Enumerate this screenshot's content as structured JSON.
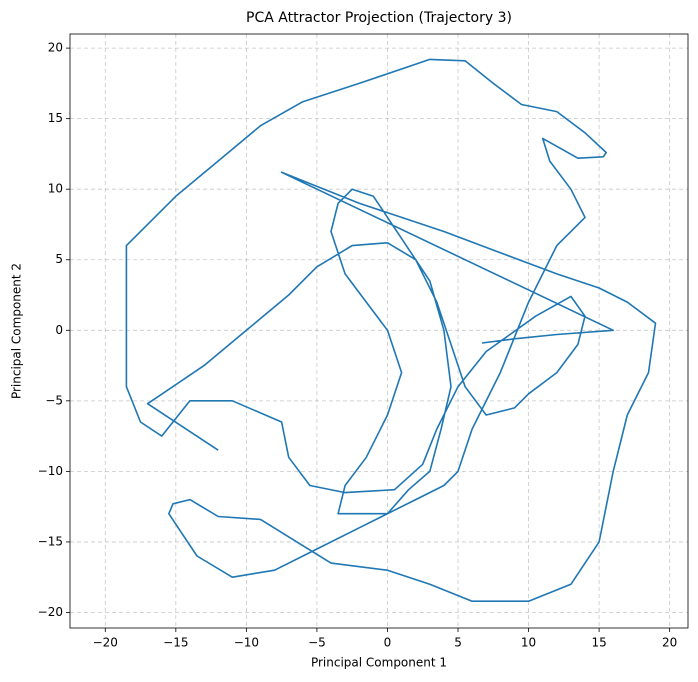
{
  "chart_data": {
    "type": "line",
    "title": "PCA Attractor Projection (Trajectory 3)",
    "x_label": "Principal Component 1",
    "y_label": "Principal Component 2",
    "xlim": [
      -22.5,
      21.3
    ],
    "ylim": [
      -21.1,
      21.0
    ],
    "xticks": [
      {
        "value": -20,
        "label": "−20"
      },
      {
        "value": -15,
        "label": "−15"
      },
      {
        "value": -10,
        "label": "−10"
      },
      {
        "value": -5,
        "label": "−5"
      },
      0,
      5,
      10,
      15,
      20
    ],
    "yticks": [
      {
        "value": -20,
        "label": "−20"
      },
      {
        "value": -15,
        "label": "−15"
      },
      {
        "value": -10,
        "label": "−10"
      },
      {
        "value": -5,
        "label": "−5"
      },
      0,
      5,
      10,
      15,
      20
    ],
    "grid": true,
    "series": [
      {
        "color": "#1f77b4",
        "x": [
          -12,
          -17,
          -13,
          -10,
          -7,
          -5,
          -2.5,
          0,
          2,
          3.5,
          4.5,
          5.5,
          7,
          9,
          10,
          12,
          13.5,
          14,
          13,
          10.5,
          7,
          5,
          3.5,
          2.5,
          0.5,
          -3,
          -5.5,
          -7,
          -7.5,
          -11,
          -14,
          -16,
          -17.5,
          -18.5,
          -18.5,
          -18.5,
          -18.5,
          -15,
          -12,
          -9,
          -6,
          -2,
          3,
          5.5,
          7.5,
          9.5,
          12,
          14,
          15.5,
          15.3,
          13.5,
          11,
          11.5,
          13,
          14,
          12,
          10,
          8,
          6,
          5,
          4,
          2,
          0,
          -3.5,
          -3,
          -1.5,
          0,
          1,
          0,
          -1.5,
          -3,
          -4,
          -3.5,
          -2.5,
          -1,
          0,
          1,
          3,
          4,
          4.5,
          3.8,
          3,
          1.5,
          0,
          -2,
          -5,
          -8,
          -11,
          -13.5,
          -15.5,
          -15.2,
          -14,
          -12,
          -9,
          -4,
          0,
          3,
          6,
          10,
          13,
          15,
          16,
          17,
          18.5,
          19,
          17,
          15,
          12,
          8,
          4,
          1,
          -2,
          -5,
          -7.5,
          16,
          12,
          9,
          6.7
        ],
        "y": [
          -8.5,
          -5.2,
          -2.5,
          0,
          2.5,
          4.5,
          6,
          6.2,
          5,
          2,
          -1,
          -4,
          -6,
          -5.5,
          -4.5,
          -3,
          -1,
          1,
          2.4,
          1,
          -1.5,
          -4,
          -7,
          -9.5,
          -11.3,
          -11.5,
          -11,
          -9,
          -6.5,
          -5,
          -5,
          -7.5,
          -6.5,
          -4,
          0,
          4,
          6,
          9.5,
          12,
          14.5,
          16.2,
          17.5,
          19.2,
          19.1,
          17.5,
          16,
          15.5,
          14,
          12.6,
          12.3,
          12.2,
          13.6,
          12,
          10,
          8,
          6,
          2,
          -3,
          -7,
          -10,
          -11,
          -12,
          -13,
          -13,
          -11,
          -9,
          -6,
          -3,
          0,
          2,
          4,
          7,
          9,
          10,
          9.5,
          8,
          6.5,
          3.5,
          0,
          -4,
          -7,
          -10,
          -11.3,
          -13,
          -14,
          -15.5,
          -17,
          -17.5,
          -16,
          -13,
          -12.3,
          -12,
          -13.2,
          -13.4,
          -16.5,
          -17,
          -18,
          -19.2,
          -19.2,
          -18,
          -15,
          -10,
          -6,
          -3,
          0.5,
          2,
          3,
          4,
          5.5,
          7,
          8,
          9,
          10.2,
          11.2,
          0,
          -0.3,
          -0.6,
          -0.9
        ]
      }
    ]
  }
}
